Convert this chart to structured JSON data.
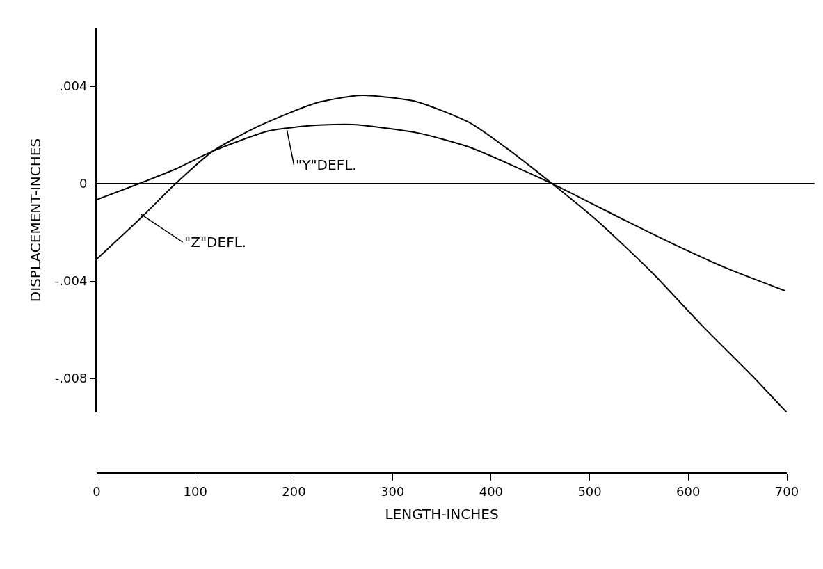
{
  "chart_data": {
    "type": "line",
    "xlabel": "LENGTH-INCHES",
    "ylabel": "DISPLACEMENT-INCHES",
    "xlim": [
      0,
      700
    ],
    "xticks": [
      0,
      100,
      200,
      300,
      400,
      500,
      600,
      700
    ],
    "ylim": [
      -0.0094,
      0.0064
    ],
    "yticks": [
      {
        "value": 0.004,
        "label": ".004"
      },
      0,
      {
        "value": -0.004,
        "label": "-.004"
      },
      {
        "value": -0.008,
        "label": "-.008"
      }
    ],
    "marker": "none",
    "line_style": "solid",
    "ref_lines": [
      {
        "axis": "y",
        "value": 0,
        "color": "#000000"
      }
    ],
    "annotations": [
      {
        "text": "\"Y\"DEFL.",
        "x": 193,
        "y": 0.0022
      },
      {
        "text": "\"Z\"DEFL.",
        "x": 45,
        "y": -0.00126
      }
    ],
    "series": [
      {
        "color": "#000000",
        "x": [
          0,
          45,
          80,
          118,
          163,
          222,
          269,
          325,
          378,
          414,
          462,
          509,
          562,
          614,
          666,
          700
        ],
        "values": [
          -0.0031,
          -0.0014,
          0,
          0.00134,
          0.00234,
          0.00331,
          0.00363,
          0.00336,
          0.00251,
          0.00151,
          0,
          -0.00157,
          -0.0036,
          -0.00583,
          -0.00794,
          -0.0094
        ]
      },
      {
        "color": "#000000",
        "x": [
          0,
          43,
          80,
          118,
          175,
          222,
          260,
          325,
          378,
          462,
          535,
          588,
          640,
          698
        ],
        "values": [
          -0.00066,
          0,
          0.0006,
          0.00134,
          0.00217,
          0.0024,
          0.00243,
          0.00209,
          0.0015,
          0,
          -0.00149,
          -0.00254,
          -0.00349,
          -0.0044
        ]
      }
    ]
  }
}
